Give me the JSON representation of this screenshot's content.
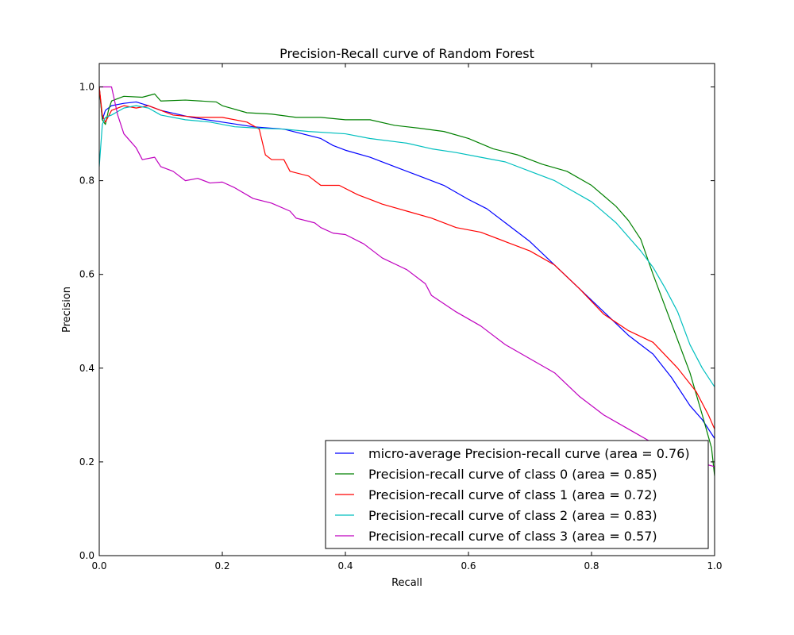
{
  "chart_data": {
    "type": "line",
    "title": "Precision-Recall curve of Random Forest",
    "xlabel": "Recall",
    "ylabel": "Precision",
    "xlim": [
      0.0,
      1.0
    ],
    "ylim": [
      0.0,
      1.05
    ],
    "xticks": [
      "0.0",
      "0.2",
      "0.4",
      "0.6",
      "0.8",
      "1.0"
    ],
    "yticks": [
      "0.0",
      "0.2",
      "0.4",
      "0.6",
      "0.8",
      "1.0"
    ],
    "grid": false,
    "legend_position": "lower-right",
    "series": [
      {
        "name": "micro-average Precision-recall curve (area = 0.76)",
        "color": "#0000ff",
        "points": [
          [
            0.0,
            1.0
          ],
          [
            0.005,
            0.93
          ],
          [
            0.01,
            0.95
          ],
          [
            0.02,
            0.96
          ],
          [
            0.04,
            0.965
          ],
          [
            0.06,
            0.968
          ],
          [
            0.08,
            0.96
          ],
          [
            0.1,
            0.95
          ],
          [
            0.15,
            0.935
          ],
          [
            0.2,
            0.925
          ],
          [
            0.25,
            0.915
          ],
          [
            0.3,
            0.91
          ],
          [
            0.33,
            0.9
          ],
          [
            0.36,
            0.89
          ],
          [
            0.38,
            0.875
          ],
          [
            0.4,
            0.865
          ],
          [
            0.44,
            0.85
          ],
          [
            0.48,
            0.83
          ],
          [
            0.52,
            0.81
          ],
          [
            0.56,
            0.79
          ],
          [
            0.6,
            0.76
          ],
          [
            0.63,
            0.74
          ],
          [
            0.66,
            0.71
          ],
          [
            0.7,
            0.67
          ],
          [
            0.74,
            0.62
          ],
          [
            0.78,
            0.57
          ],
          [
            0.82,
            0.52
          ],
          [
            0.86,
            0.47
          ],
          [
            0.9,
            0.43
          ],
          [
            0.93,
            0.38
          ],
          [
            0.96,
            0.32
          ],
          [
            0.98,
            0.29
          ],
          [
            1.0,
            0.25
          ]
        ]
      },
      {
        "name": "Precision-recall curve of class 0 (area = 0.85)",
        "color": "#008000",
        "points": [
          [
            0.0,
            1.0
          ],
          [
            0.005,
            0.93
          ],
          [
            0.01,
            0.92
          ],
          [
            0.015,
            0.95
          ],
          [
            0.02,
            0.97
          ],
          [
            0.04,
            0.98
          ],
          [
            0.07,
            0.978
          ],
          [
            0.09,
            0.985
          ],
          [
            0.1,
            0.97
          ],
          [
            0.14,
            0.972
          ],
          [
            0.19,
            0.968
          ],
          [
            0.2,
            0.96
          ],
          [
            0.24,
            0.945
          ],
          [
            0.28,
            0.942
          ],
          [
            0.32,
            0.935
          ],
          [
            0.36,
            0.935
          ],
          [
            0.4,
            0.93
          ],
          [
            0.44,
            0.93
          ],
          [
            0.48,
            0.918
          ],
          [
            0.52,
            0.912
          ],
          [
            0.56,
            0.905
          ],
          [
            0.6,
            0.89
          ],
          [
            0.64,
            0.868
          ],
          [
            0.68,
            0.855
          ],
          [
            0.72,
            0.835
          ],
          [
            0.76,
            0.82
          ],
          [
            0.8,
            0.79
          ],
          [
            0.84,
            0.745
          ],
          [
            0.86,
            0.715
          ],
          [
            0.88,
            0.675
          ],
          [
            0.9,
            0.6
          ],
          [
            0.92,
            0.53
          ],
          [
            0.94,
            0.46
          ],
          [
            0.96,
            0.39
          ],
          [
            0.98,
            0.3
          ],
          [
            0.995,
            0.23
          ],
          [
            1.0,
            0.17
          ]
        ]
      },
      {
        "name": "Precision-recall curve of class 1 (area = 0.72)",
        "color": "#ff0000",
        "points": [
          [
            0.0,
            1.0
          ],
          [
            0.005,
            0.94
          ],
          [
            0.01,
            0.925
          ],
          [
            0.02,
            0.95
          ],
          [
            0.04,
            0.96
          ],
          [
            0.06,
            0.955
          ],
          [
            0.08,
            0.96
          ],
          [
            0.12,
            0.94
          ],
          [
            0.16,
            0.935
          ],
          [
            0.2,
            0.935
          ],
          [
            0.24,
            0.925
          ],
          [
            0.26,
            0.91
          ],
          [
            0.27,
            0.855
          ],
          [
            0.28,
            0.845
          ],
          [
            0.3,
            0.845
          ],
          [
            0.31,
            0.82
          ],
          [
            0.34,
            0.81
          ],
          [
            0.36,
            0.79
          ],
          [
            0.39,
            0.79
          ],
          [
            0.42,
            0.77
          ],
          [
            0.44,
            0.76
          ],
          [
            0.46,
            0.75
          ],
          [
            0.5,
            0.735
          ],
          [
            0.54,
            0.72
          ],
          [
            0.58,
            0.7
          ],
          [
            0.62,
            0.69
          ],
          [
            0.66,
            0.67
          ],
          [
            0.7,
            0.65
          ],
          [
            0.74,
            0.62
          ],
          [
            0.78,
            0.57
          ],
          [
            0.82,
            0.515
          ],
          [
            0.86,
            0.48
          ],
          [
            0.9,
            0.455
          ],
          [
            0.94,
            0.4
          ],
          [
            0.97,
            0.35
          ],
          [
            0.99,
            0.3
          ],
          [
            1.0,
            0.27
          ]
        ]
      },
      {
        "name": "Precision-recall curve of class 2 (area = 0.83)",
        "color": "#00bfbf",
        "points": [
          [
            0.0,
            0.83
          ],
          [
            0.005,
            0.92
          ],
          [
            0.01,
            0.935
          ],
          [
            0.02,
            0.94
          ],
          [
            0.04,
            0.955
          ],
          [
            0.06,
            0.96
          ],
          [
            0.08,
            0.955
          ],
          [
            0.1,
            0.94
          ],
          [
            0.14,
            0.93
          ],
          [
            0.18,
            0.925
          ],
          [
            0.22,
            0.915
          ],
          [
            0.26,
            0.912
          ],
          [
            0.3,
            0.91
          ],
          [
            0.34,
            0.905
          ],
          [
            0.4,
            0.9
          ],
          [
            0.44,
            0.89
          ],
          [
            0.5,
            0.88
          ],
          [
            0.54,
            0.868
          ],
          [
            0.58,
            0.86
          ],
          [
            0.62,
            0.85
          ],
          [
            0.66,
            0.84
          ],
          [
            0.7,
            0.82
          ],
          [
            0.74,
            0.8
          ],
          [
            0.76,
            0.785
          ],
          [
            0.8,
            0.755
          ],
          [
            0.84,
            0.71
          ],
          [
            0.86,
            0.68
          ],
          [
            0.88,
            0.65
          ],
          [
            0.9,
            0.615
          ],
          [
            0.92,
            0.57
          ],
          [
            0.94,
            0.52
          ],
          [
            0.96,
            0.45
          ],
          [
            0.98,
            0.4
          ],
          [
            1.0,
            0.36
          ]
        ]
      },
      {
        "name": "Precision-recall curve of class 3 (area = 0.57)",
        "color": "#bf00bf",
        "points": [
          [
            0.0,
            1.0
          ],
          [
            0.01,
            1.0
          ],
          [
            0.02,
            1.0
          ],
          [
            0.025,
            0.97
          ],
          [
            0.03,
            0.94
          ],
          [
            0.04,
            0.9
          ],
          [
            0.05,
            0.885
          ],
          [
            0.06,
            0.87
          ],
          [
            0.07,
            0.845
          ],
          [
            0.09,
            0.85
          ],
          [
            0.1,
            0.83
          ],
          [
            0.12,
            0.82
          ],
          [
            0.14,
            0.8
          ],
          [
            0.16,
            0.805
          ],
          [
            0.18,
            0.795
          ],
          [
            0.2,
            0.797
          ],
          [
            0.22,
            0.785
          ],
          [
            0.25,
            0.762
          ],
          [
            0.28,
            0.752
          ],
          [
            0.31,
            0.735
          ],
          [
            0.32,
            0.72
          ],
          [
            0.35,
            0.71
          ],
          [
            0.36,
            0.7
          ],
          [
            0.38,
            0.688
          ],
          [
            0.4,
            0.685
          ],
          [
            0.43,
            0.665
          ],
          [
            0.46,
            0.635
          ],
          [
            0.5,
            0.61
          ],
          [
            0.53,
            0.58
          ],
          [
            0.54,
            0.555
          ],
          [
            0.58,
            0.52
          ],
          [
            0.62,
            0.49
          ],
          [
            0.66,
            0.45
          ],
          [
            0.7,
            0.42
          ],
          [
            0.74,
            0.39
          ],
          [
            0.78,
            0.34
          ],
          [
            0.82,
            0.3
          ],
          [
            0.86,
            0.27
          ],
          [
            0.9,
            0.24
          ],
          [
            0.94,
            0.22
          ],
          [
            0.97,
            0.2
          ],
          [
            1.0,
            0.19
          ]
        ]
      }
    ]
  }
}
